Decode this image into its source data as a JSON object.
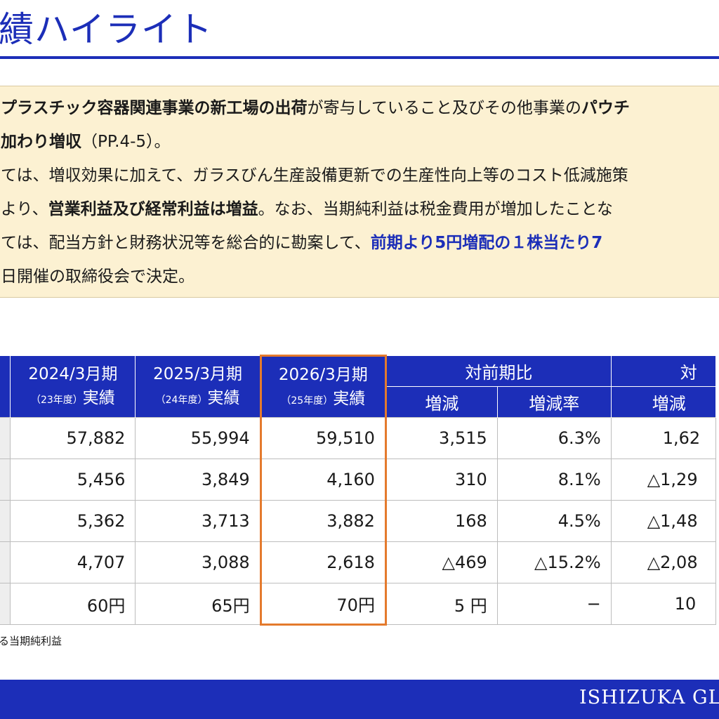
{
  "page": {
    "title": "績ハイライト"
  },
  "summary": {
    "line1": {
      "bold1": "プラスチック容器関連事業の新工場の出荷",
      "text1": "が寄与していること及びその他事業の",
      "bold2": "パウチ"
    },
    "line2": {
      "bold1": "加わり増収",
      "text1": "（PP.4-5）。"
    },
    "line3": {
      "text1": "ては、増収効果に加えて、ガラスびん生産設備更新での生産性向上等のコスト低減施策"
    },
    "line4": {
      "text1": "より、",
      "bold1": "営業利益及び経常利益は増益",
      "text2": "。なお、当期純利益は税金費用が増加したことな"
    },
    "line5": {
      "text1": "ては、配当方針と財務状況等を総合的に勘案して、",
      "hl1": "前期より5円増配の１株当たり7"
    },
    "line6": {
      "text1": "日開催の取締役会で決定。"
    }
  },
  "table": {
    "columns": [
      {
        "top": "2024/3月期",
        "sub": "（23年度）",
        "sub2": "実績"
      },
      {
        "top": "2025/3月期",
        "sub": "（24年度）",
        "sub2": "実績"
      },
      {
        "top": "2026/3月期",
        "sub": "（25年度）",
        "sub2": "実績"
      }
    ],
    "group1": {
      "label": "対前期比",
      "sub1": "増減",
      "sub2": "増減率"
    },
    "group2": {
      "label": "対",
      "sub1": "増減"
    },
    "rows": [
      {
        "v1": "57,882",
        "v2": "55,994",
        "v3": "59,510",
        "d1": "3,515",
        "d2": "6.3%",
        "d3": "1,62"
      },
      {
        "v1": "5,456",
        "v2": "3,849",
        "v3": "4,160",
        "d1": "310",
        "d2": "8.1%",
        "d3": "△1,29"
      },
      {
        "v1": "5,362",
        "v2": "3,713",
        "v3": "3,882",
        "d1": "168",
        "d2": "4.5%",
        "d3": "△1,48"
      },
      {
        "v1": "4,707",
        "v2": "3,088",
        "v3": "2,618",
        "d1": "△469",
        "d2": "△15.2%",
        "d3": "△2,08"
      },
      {
        "v1": "60円",
        "v2": "65円",
        "v3": "70円",
        "d1": "5 円",
        "d2": "−",
        "d3": "10"
      }
    ],
    "highlight_color": "#e47a2d"
  },
  "footnote": "る当期純利益",
  "footer": {
    "brand": "ISHIZUKA GLA"
  },
  "colors": {
    "brand_blue": "#1c2eb8",
    "summary_bg": "#fcf1d2"
  }
}
